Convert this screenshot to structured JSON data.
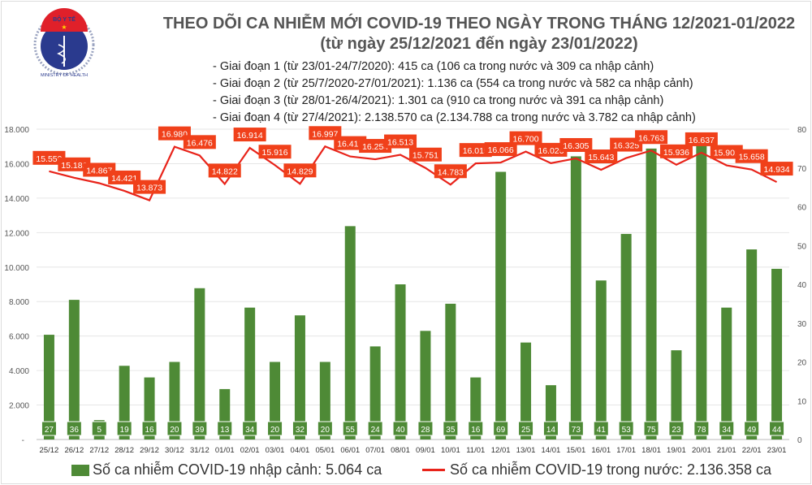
{
  "header": {
    "title_line1": "THEO DÕI CA NHIỄM MỚI COVID-19 THEO NGÀY TRONG THÁNG 12/2021-01/2022",
    "title_line2": "(từ ngày 25/12/2021 đến ngày 23/01/2022)",
    "notes": [
      "- Giai đoạn 1 (từ 23/01-24/7/2020): 415 ca (106 ca trong nước và 309 ca nhập cảnh)",
      "- Giai đoạn 2 (từ 25/7/2020-27/01/2021): 1.136 ca (554 ca trong nước và 582 ca nhập cảnh)",
      "- Giai đoạn 3 (từ 28/01-26/4/2021): 1.301 ca (910 ca trong nước và 391 ca nhập cảnh)",
      "- Giai đoạn 4 (từ 27/4/2021): 2.138.570 ca (2.134.788 ca trong nước và 3.782 ca nhập cảnh)"
    ],
    "logo_text": "BỘ Y TẾ MINISTRY OF HEALTH"
  },
  "chart_data": {
    "type": "bar+line",
    "categories": [
      "25/12",
      "26/12",
      "27/12",
      "28/12",
      "29/12",
      "30/12",
      "31/12",
      "01/01",
      "02/01",
      "03/01",
      "04/01",
      "05/01",
      "06/01",
      "07/01",
      "08/01",
      "09/01",
      "10/01",
      "11/01",
      "12/01",
      "13/01",
      "14/01",
      "15/01",
      "16/01",
      "17/01",
      "18/01",
      "19/01",
      "20/01",
      "21/01",
      "22/01",
      "23/01"
    ],
    "series": [
      {
        "name": "Số ca nhiễm COVID-19 nhập cảnh: 5.064 ca",
        "type": "bar",
        "axis": "right",
        "color": "#4e8a36",
        "values": [
          27,
          36,
          5,
          19,
          16,
          20,
          39,
          13,
          34,
          20,
          32,
          20,
          55,
          24,
          40,
          28,
          35,
          16,
          69,
          25,
          14,
          73,
          41,
          53,
          75,
          23,
          78,
          34,
          49,
          44
        ]
      },
      {
        "name": "Số ca nhiễm COVID-19 trong nước: 2.136.358 ca",
        "type": "line",
        "axis": "left",
        "color": "#e8231a",
        "values": [
          15559,
          15182,
          14867,
          14421,
          13873,
          16980,
          16476,
          14822,
          16914,
          15916,
          14829,
          16997,
          16417,
          16254,
          16513,
          15751,
          14783,
          16015,
          16066,
          16700,
          16026,
          16305,
          15643,
          16325,
          16763,
          15936,
          16637,
          15902,
          15658,
          14934
        ]
      }
    ],
    "left_axis": {
      "range": [
        0,
        18000
      ],
      "ticks": [
        "-",
        "2.000",
        "4.000",
        "6.000",
        "8.000",
        "10.000",
        "12.000",
        "14.000",
        "16.000",
        "18.000"
      ]
    },
    "right_axis": {
      "range": [
        0,
        80
      ],
      "ticks": [
        "0",
        "10",
        "20",
        "30",
        "40",
        "50",
        "60",
        "70",
        "80"
      ]
    },
    "grid": true,
    "legend": "bottom"
  }
}
